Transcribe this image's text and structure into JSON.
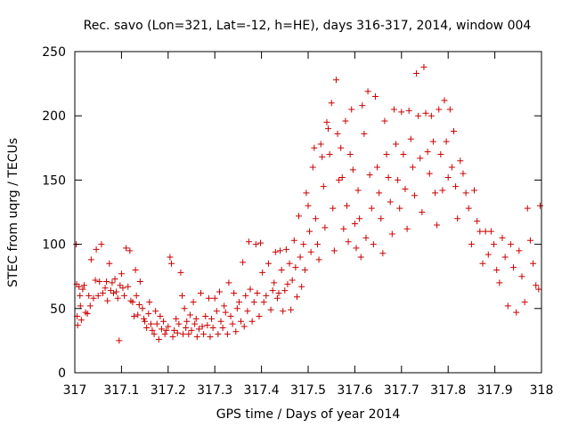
{
  "chart_data": {
    "type": "scatter",
    "title": "Rec. savo (Lon=321, Lat=-12, h=HE), days 316-317, 2014, window 004",
    "xlabel": "GPS time / Days of year 2014",
    "ylabel": "STEC from uqrg / TECUs",
    "xlim": [
      317,
      318
    ],
    "ylim": [
      0,
      250
    ],
    "x_ticks": [
      317,
      317.1,
      317.2,
      317.3,
      317.4,
      317.5,
      317.6,
      317.7,
      317.8,
      317.9,
      318
    ],
    "x_tick_labels": [
      "317",
      "317.1",
      "317.2",
      "317.3",
      "317.4",
      "317.5",
      "317.6",
      "317.7",
      "317.8",
      "317.9",
      "318"
    ],
    "y_ticks": [
      0,
      50,
      100,
      150,
      200,
      250
    ],
    "y_tick_labels": [
      "0",
      "50",
      "100",
      "150",
      "200",
      "250"
    ],
    "grid": false,
    "legend": "none",
    "marker": "plus",
    "color": "#cc0000",
    "series": [
      {
        "points": [
          [
            317.003,
            100
          ],
          [
            317.004,
            69
          ],
          [
            317.005,
            44
          ],
          [
            317.006,
            37
          ],
          [
            317.009,
            67
          ],
          [
            317.011,
            60
          ],
          [
            317.012,
            52
          ],
          [
            317.014,
            41
          ],
          [
            317.017,
            65
          ],
          [
            317.02,
            68
          ],
          [
            317.023,
            47
          ],
          [
            317.027,
            46
          ],
          [
            317.03,
            60
          ],
          [
            317.033,
            52
          ],
          [
            317.035,
            88
          ],
          [
            317.04,
            58
          ],
          [
            317.044,
            72
          ],
          [
            317.046,
            96
          ],
          [
            317.05,
            60
          ],
          [
            317.053,
            71
          ],
          [
            317.057,
            100
          ],
          [
            317.06,
            62
          ],
          [
            317.065,
            66
          ],
          [
            317.068,
            71
          ],
          [
            317.07,
            56
          ],
          [
            317.074,
            85
          ],
          [
            317.077,
            64
          ],
          [
            317.08,
            70
          ],
          [
            317.083,
            62
          ],
          [
            317.086,
            73
          ],
          [
            317.089,
            63
          ],
          [
            317.092,
            58
          ],
          [
            317.095,
            25
          ],
          [
            317.097,
            68
          ],
          [
            317.1,
            77
          ],
          [
            317.103,
            66
          ],
          [
            317.106,
            60
          ],
          [
            317.11,
            97
          ],
          [
            317.114,
            67
          ],
          [
            317.118,
            95
          ],
          [
            317.12,
            56
          ],
          [
            317.124,
            55
          ],
          [
            317.127,
            44
          ],
          [
            317.13,
            80
          ],
          [
            317.132,
            60
          ],
          [
            317.135,
            45
          ],
          [
            317.138,
            53
          ],
          [
            317.14,
            71
          ],
          [
            317.145,
            50
          ],
          [
            317.148,
            42
          ],
          [
            317.15,
            40
          ],
          [
            317.154,
            35
          ],
          [
            317.158,
            46
          ],
          [
            317.16,
            55
          ],
          [
            317.163,
            38
          ],
          [
            317.166,
            33
          ],
          [
            317.17,
            30
          ],
          [
            317.173,
            48
          ],
          [
            317.176,
            38
          ],
          [
            317.18,
            26
          ],
          [
            317.183,
            44
          ],
          [
            317.186,
            34
          ],
          [
            317.19,
            40
          ],
          [
            317.193,
            30
          ],
          [
            317.196,
            33
          ],
          [
            317.2,
            36
          ],
          [
            317.204,
            90
          ],
          [
            317.207,
            85
          ],
          [
            317.21,
            28
          ],
          [
            317.213,
            33
          ],
          [
            317.217,
            42
          ],
          [
            317.22,
            31
          ],
          [
            317.223,
            38
          ],
          [
            317.227,
            78
          ],
          [
            317.23,
            60
          ],
          [
            317.232,
            30
          ],
          [
            317.235,
            50
          ],
          [
            317.238,
            35
          ],
          [
            317.24,
            40
          ],
          [
            317.244,
            30
          ],
          [
            317.247,
            45
          ],
          [
            317.25,
            33
          ],
          [
            317.254,
            55
          ],
          [
            317.257,
            38
          ],
          [
            317.26,
            42
          ],
          [
            317.262,
            28
          ],
          [
            317.266,
            34
          ],
          [
            317.27,
            62
          ],
          [
            317.273,
            36
          ],
          [
            317.276,
            30
          ],
          [
            317.28,
            44
          ],
          [
            317.284,
            37
          ],
          [
            317.287,
            58
          ],
          [
            317.29,
            28
          ],
          [
            317.293,
            42
          ],
          [
            317.296,
            35
          ],
          [
            317.3,
            58
          ],
          [
            317.304,
            48
          ],
          [
            317.307,
            30
          ],
          [
            317.31,
            63
          ],
          [
            317.313,
            40
          ],
          [
            317.317,
            35
          ],
          [
            317.32,
            52
          ],
          [
            317.323,
            47
          ],
          [
            317.327,
            30
          ],
          [
            317.33,
            70
          ],
          [
            317.334,
            44
          ],
          [
            317.338,
            38
          ],
          [
            317.341,
            62
          ],
          [
            317.345,
            32
          ],
          [
            317.348,
            50
          ],
          [
            317.352,
            55
          ],
          [
            317.356,
            40
          ],
          [
            317.36,
            86
          ],
          [
            317.363,
            36
          ],
          [
            317.366,
            60
          ],
          [
            317.37,
            48
          ],
          [
            317.373,
            102
          ],
          [
            317.376,
            65
          ],
          [
            317.38,
            40
          ],
          [
            317.384,
            55
          ],
          [
            317.388,
            100
          ],
          [
            317.391,
            62
          ],
          [
            317.395,
            44
          ],
          [
            317.398,
            101
          ],
          [
            317.402,
            78
          ],
          [
            317.405,
            55
          ],
          [
            317.41,
            60
          ],
          [
            317.415,
            85
          ],
          [
            317.42,
            49
          ],
          [
            317.424,
            64
          ],
          [
            317.427,
            70
          ],
          [
            317.43,
            94
          ],
          [
            317.434,
            58
          ],
          [
            317.437,
            62
          ],
          [
            317.44,
            95
          ],
          [
            317.443,
            80
          ],
          [
            317.446,
            48
          ],
          [
            317.45,
            64
          ],
          [
            317.453,
            96
          ],
          [
            317.456,
            69
          ],
          [
            317.46,
            85
          ],
          [
            317.463,
            49
          ],
          [
            317.466,
            72
          ],
          [
            317.47,
            103
          ],
          [
            317.473,
            82
          ],
          [
            317.476,
            59
          ],
          [
            317.48,
            122
          ],
          [
            317.483,
            90
          ],
          [
            317.486,
            67
          ],
          [
            317.49,
            100
          ],
          [
            317.493,
            80
          ],
          [
            317.496,
            140
          ],
          [
            317.5,
            130
          ],
          [
            317.503,
            110
          ],
          [
            317.506,
            94
          ],
          [
            317.51,
            160
          ],
          [
            317.513,
            175
          ],
          [
            317.516,
            120
          ],
          [
            317.52,
            100
          ],
          [
            317.523,
            88
          ],
          [
            317.527,
            178
          ],
          [
            317.53,
            168
          ],
          [
            317.533,
            145
          ],
          [
            317.536,
            113
          ],
          [
            317.54,
            195
          ],
          [
            317.543,
            190
          ],
          [
            317.546,
            170
          ],
          [
            317.55,
            210
          ],
          [
            317.553,
            128
          ],
          [
            317.556,
            95
          ],
          [
            317.56,
            228
          ],
          [
            317.563,
            186
          ],
          [
            317.566,
            150
          ],
          [
            317.57,
            175
          ],
          [
            317.573,
            152
          ],
          [
            317.576,
            112
          ],
          [
            317.58,
            196
          ],
          [
            317.583,
            130
          ],
          [
            317.586,
            102
          ],
          [
            317.59,
            170
          ],
          [
            317.593,
            205
          ],
          [
            317.596,
            158
          ],
          [
            317.6,
            116
          ],
          [
            317.603,
            97
          ],
          [
            317.607,
            142
          ],
          [
            317.61,
            120
          ],
          [
            317.613,
            90
          ],
          [
            317.616,
            208
          ],
          [
            317.62,
            186
          ],
          [
            317.624,
            105
          ],
          [
            317.628,
            219
          ],
          [
            317.632,
            154
          ],
          [
            317.636,
            128
          ],
          [
            317.64,
            100
          ],
          [
            317.644,
            215
          ],
          [
            317.648,
            160
          ],
          [
            317.652,
            140
          ],
          [
            317.656,
            120
          ],
          [
            317.66,
            93
          ],
          [
            317.664,
            196
          ],
          [
            317.668,
            170
          ],
          [
            317.672,
            152
          ],
          [
            317.676,
            133
          ],
          [
            317.68,
            108
          ],
          [
            317.684,
            205
          ],
          [
            317.688,
            178
          ],
          [
            317.692,
            150
          ],
          [
            317.696,
            128
          ],
          [
            317.7,
            203
          ],
          [
            317.704,
            170
          ],
          [
            317.708,
            143
          ],
          [
            317.712,
            112
          ],
          [
            317.716,
            204
          ],
          [
            317.72,
            182
          ],
          [
            317.724,
            160
          ],
          [
            317.728,
            138
          ],
          [
            317.732,
            233
          ],
          [
            317.736,
            200
          ],
          [
            317.74,
            167
          ],
          [
            317.744,
            125
          ],
          [
            317.748,
            238
          ],
          [
            317.752,
            202
          ],
          [
            317.756,
            172
          ],
          [
            317.76,
            155
          ],
          [
            317.764,
            200
          ],
          [
            317.768,
            180
          ],
          [
            317.772,
            140
          ],
          [
            317.776,
            115
          ],
          [
            317.78,
            205
          ],
          [
            317.784,
            170
          ],
          [
            317.788,
            142
          ],
          [
            317.792,
            212
          ],
          [
            317.796,
            180
          ],
          [
            317.8,
            152
          ],
          [
            317.804,
            205
          ],
          [
            317.808,
            160
          ],
          [
            317.812,
            188
          ],
          [
            317.816,
            145
          ],
          [
            317.82,
            120
          ],
          [
            317.826,
            165
          ],
          [
            317.832,
            155
          ],
          [
            317.838,
            140
          ],
          [
            317.844,
            128
          ],
          [
            317.85,
            100
          ],
          [
            317.856,
            142
          ],
          [
            317.862,
            118
          ],
          [
            317.868,
            110
          ],
          [
            317.874,
            85
          ],
          [
            317.88,
            110
          ],
          [
            317.886,
            92
          ],
          [
            317.892,
            110
          ],
          [
            317.898,
            100
          ],
          [
            317.904,
            80
          ],
          [
            317.91,
            70
          ],
          [
            317.916,
            105
          ],
          [
            317.922,
            90
          ],
          [
            317.928,
            52
          ],
          [
            317.934,
            100
          ],
          [
            317.94,
            82
          ],
          [
            317.946,
            47
          ],
          [
            317.952,
            95
          ],
          [
            317.958,
            75
          ],
          [
            317.964,
            55
          ],
          [
            317.97,
            128
          ],
          [
            317.976,
            103
          ],
          [
            317.982,
            85
          ],
          [
            317.988,
            68
          ],
          [
            317.994,
            65
          ],
          [
            317.997,
            130
          ]
        ]
      }
    ]
  }
}
